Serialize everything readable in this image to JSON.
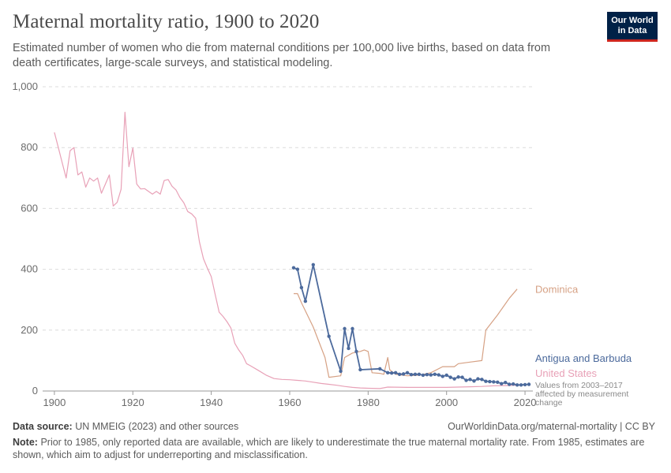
{
  "header": {
    "title": "Maternal mortality ratio, 1900 to 2020",
    "subtitle": "Estimated number of women who die from maternal conditions per 100,000 live births, based on data from death certificates, large-scale surveys, and statistical modeling."
  },
  "logo": {
    "line1": "Our World",
    "line2": "in Data",
    "bg_color": "#002147",
    "accent_color": "#ce261e"
  },
  "footer": {
    "source_label": "Data source:",
    "source_text": "UN MMEIG (2023) and other sources",
    "url_text": "OurWorldinData.org/maternal-mortality | CC BY",
    "note_label": "Note:",
    "note_text": "Prior to 1985, only reported data are available, which are likely to underestimate the true maternal mortality rate. From 1985, estimates are shown, which aim to adjust for underreporting and misclassification."
  },
  "chart_data": {
    "type": "line",
    "xlim": [
      1897,
      2022
    ],
    "ylim": [
      0,
      1000
    ],
    "x_ticks": [
      "1900",
      "1920",
      "1940",
      "1960",
      "1980",
      "2000",
      "2020"
    ],
    "y_ticks": [
      "0",
      "200",
      "400",
      "600",
      "800",
      "1,000"
    ],
    "grid": "horizontal dashed",
    "legend": "labels at line ends (right)",
    "annotation": "Values from 2003–2017 affected by measurement change",
    "series": [
      {
        "name": "United States",
        "color": "#e8a1b7",
        "markers": false,
        "points": [
          [
            1900,
            850
          ],
          [
            1901,
            800
          ],
          [
            1902,
            750
          ],
          [
            1903,
            700
          ],
          [
            1904,
            790
          ],
          [
            1905,
            800
          ],
          [
            1906,
            710
          ],
          [
            1907,
            720
          ],
          [
            1908,
            670
          ],
          [
            1909,
            700
          ],
          [
            1910,
            690
          ],
          [
            1911,
            700
          ],
          [
            1912,
            650
          ],
          [
            1913,
            680
          ],
          [
            1914,
            710
          ],
          [
            1915,
            608
          ],
          [
            1916,
            620
          ],
          [
            1917,
            663
          ],
          [
            1918,
            916
          ],
          [
            1919,
            737
          ],
          [
            1920,
            799
          ],
          [
            1921,
            680
          ],
          [
            1922,
            664
          ],
          [
            1923,
            665
          ],
          [
            1924,
            656
          ],
          [
            1925,
            647
          ],
          [
            1926,
            656
          ],
          [
            1927,
            647
          ],
          [
            1928,
            692
          ],
          [
            1929,
            695
          ],
          [
            1930,
            673
          ],
          [
            1931,
            661
          ],
          [
            1932,
            636
          ],
          [
            1933,
            619
          ],
          [
            1934,
            590
          ],
          [
            1935,
            582
          ],
          [
            1936,
            568
          ],
          [
            1937,
            489
          ],
          [
            1938,
            435
          ],
          [
            1939,
            404
          ],
          [
            1940,
            376
          ],
          [
            1941,
            317
          ],
          [
            1942,
            259
          ],
          [
            1943,
            245
          ],
          [
            1944,
            228
          ],
          [
            1945,
            207
          ],
          [
            1946,
            157
          ],
          [
            1947,
            135
          ],
          [
            1948,
            117
          ],
          [
            1949,
            90
          ],
          [
            1950,
            83
          ],
          [
            1952,
            68
          ],
          [
            1954,
            52
          ],
          [
            1956,
            41
          ],
          [
            1958,
            38
          ],
          [
            1960,
            37
          ],
          [
            1962,
            35
          ],
          [
            1964,
            33
          ],
          [
            1966,
            29
          ],
          [
            1968,
            25
          ],
          [
            1970,
            22
          ],
          [
            1972,
            19
          ],
          [
            1974,
            15
          ],
          [
            1976,
            12
          ],
          [
            1978,
            10
          ],
          [
            1980,
            9
          ],
          [
            1983,
            8
          ],
          [
            1985,
            13
          ],
          [
            1990,
            12
          ],
          [
            1995,
            12
          ],
          [
            2000,
            12
          ],
          [
            2003,
            13
          ],
          [
            2006,
            14
          ],
          [
            2009,
            15
          ],
          [
            2012,
            17
          ],
          [
            2015,
            18
          ],
          [
            2018,
            19
          ],
          [
            2020,
            21
          ]
        ]
      },
      {
        "name": "Dominica",
        "color": "#d6a184",
        "markers": false,
        "points": [
          [
            1961,
            320
          ],
          [
            1962,
            320
          ],
          [
            1963,
            290
          ],
          [
            1966,
            210
          ],
          [
            1969,
            110
          ],
          [
            1970,
            45
          ],
          [
            1973,
            50
          ],
          [
            1974,
            110
          ],
          [
            1976,
            125
          ],
          [
            1978,
            130
          ],
          [
            1979,
            135
          ],
          [
            1980,
            130
          ],
          [
            1981,
            60
          ],
          [
            1983,
            58
          ],
          [
            1984,
            55
          ],
          [
            1985,
            110
          ],
          [
            1985.5,
            70
          ],
          [
            1987,
            55
          ],
          [
            1990,
            50
          ],
          [
            1993,
            52
          ],
          [
            1996,
            60
          ],
          [
            1999,
            80
          ],
          [
            2002,
            80
          ],
          [
            2003,
            90
          ],
          [
            2006,
            95
          ],
          [
            2009,
            100
          ],
          [
            2010,
            200
          ],
          [
            2013,
            250
          ],
          [
            2016,
            305
          ],
          [
            2018,
            335
          ]
        ]
      },
      {
        "name": "Antigua and Barbuda",
        "color": "#4c6a9c",
        "markers": true,
        "points": [
          [
            1961,
            405
          ],
          [
            1962,
            400
          ],
          [
            1963,
            340
          ],
          [
            1964,
            295
          ],
          [
            1966,
            415
          ],
          [
            1970,
            180
          ],
          [
            1973,
            65
          ],
          [
            1974,
            205
          ],
          [
            1975,
            140
          ],
          [
            1976,
            205
          ],
          [
            1977,
            130
          ],
          [
            1978,
            70
          ],
          [
            1983,
            73
          ],
          [
            1985,
            60
          ],
          [
            1986,
            59
          ],
          [
            1987,
            60
          ],
          [
            1988,
            55
          ],
          [
            1989,
            56
          ],
          [
            1990,
            60
          ],
          [
            1991,
            54
          ],
          [
            1992,
            55
          ],
          [
            1993,
            55
          ],
          [
            1994,
            52
          ],
          [
            1995,
            54
          ],
          [
            1996,
            53
          ],
          [
            1997,
            55
          ],
          [
            1998,
            53
          ],
          [
            1999,
            48
          ],
          [
            2000,
            52
          ],
          [
            2001,
            45
          ],
          [
            2002,
            40
          ],
          [
            2003,
            46
          ],
          [
            2004,
            45
          ],
          [
            2005,
            35
          ],
          [
            2006,
            38
          ],
          [
            2007,
            33
          ],
          [
            2008,
            40
          ],
          [
            2009,
            38
          ],
          [
            2010,
            32
          ],
          [
            2011,
            31
          ],
          [
            2012,
            30
          ],
          [
            2013,
            29
          ],
          [
            2014,
            24
          ],
          [
            2015,
            28
          ],
          [
            2016,
            22
          ],
          [
            2017,
            23
          ],
          [
            2018,
            20
          ],
          [
            2019,
            20
          ],
          [
            2020,
            21
          ],
          [
            2021,
            22
          ]
        ]
      }
    ]
  }
}
